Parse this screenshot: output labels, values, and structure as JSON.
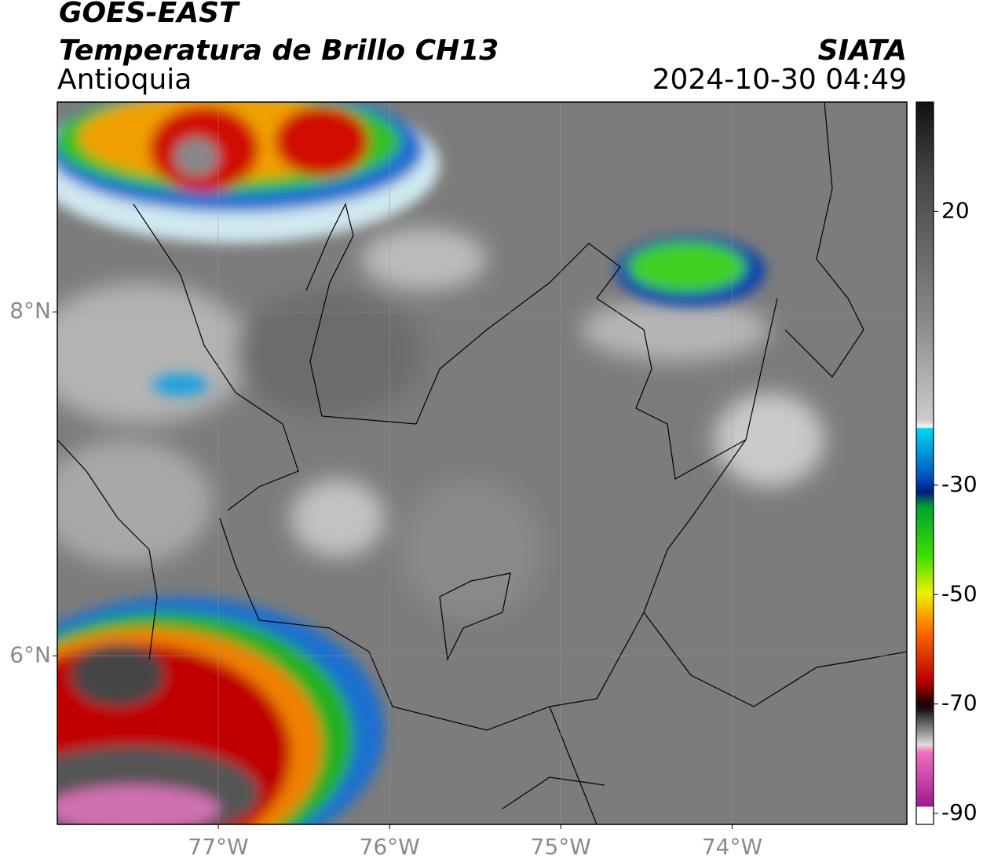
{
  "header": {
    "title": "GOES-EAST",
    "subtitle": "Temperatura de Brillo CH13",
    "region": "Antioquia",
    "source": "SIATA",
    "datetime": "2024-10-30 04:49"
  },
  "map": {
    "xlim": [
      -77.94,
      -72.98
    ],
    "ylim": [
      5.02,
      9.22
    ],
    "xticks": [
      {
        "value": -77,
        "label": "77°W"
      },
      {
        "value": -76,
        "label": "76°W"
      },
      {
        "value": -75,
        "label": "75°W"
      },
      {
        "value": -74,
        "label": "74°W"
      }
    ],
    "yticks": [
      {
        "value": 8,
        "label": "8°N"
      },
      {
        "value": 6,
        "label": "6°N"
      }
    ],
    "grid": true
  },
  "colorbar": {
    "ylim": [
      -92,
      40
    ],
    "yticks": [
      20,
      -30,
      -50,
      -70,
      -90
    ]
  }
}
